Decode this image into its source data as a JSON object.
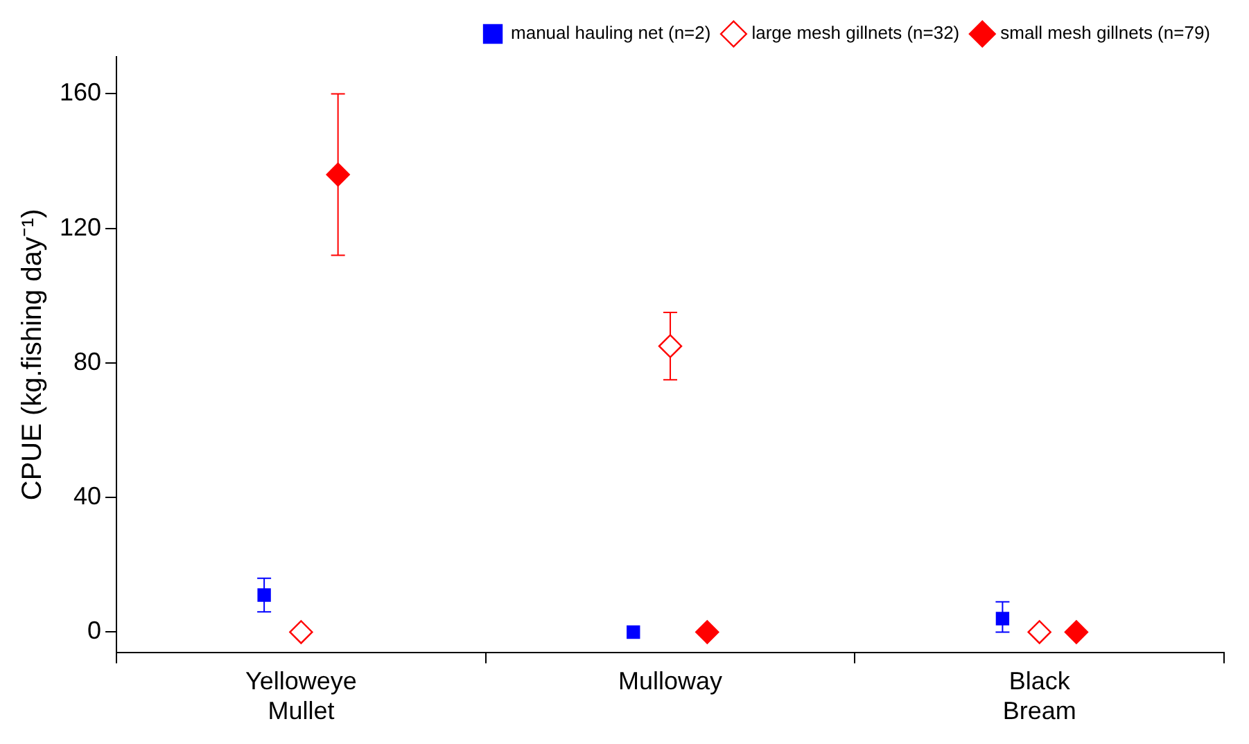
{
  "chart_data": {
    "type": "scatter",
    "ylabel": "CPUE (kg.fishing day⁻¹)",
    "categories": [
      "Yelloweye\nMullet",
      "Mulloway",
      "Black\nBream"
    ],
    "ylim": [
      -6,
      171
    ],
    "yticks": [
      0,
      40,
      80,
      120,
      160
    ],
    "grid": false,
    "legend": "top right",
    "series": [
      {
        "name": "manual hauling net (n=2)",
        "color": "#0000ff",
        "marker": "square",
        "values": [
          11,
          0,
          4
        ],
        "errors": [
          5,
          null,
          [
            0,
            9
          ]
        ]
      },
      {
        "name": "large mesh gillnets (n=32)",
        "color": "#ff0000",
        "marker": "diamond-open",
        "values": [
          0,
          85,
          0
        ],
        "errors": [
          null,
          [
            75,
            95
          ],
          null
        ]
      },
      {
        "name": "small mesh gillnets (n=79)",
        "color": "#ff0000",
        "marker": "diamond",
        "values": [
          136,
          0,
          0
        ],
        "errors": [
          [
            112,
            160
          ],
          null,
          null
        ]
      }
    ]
  }
}
